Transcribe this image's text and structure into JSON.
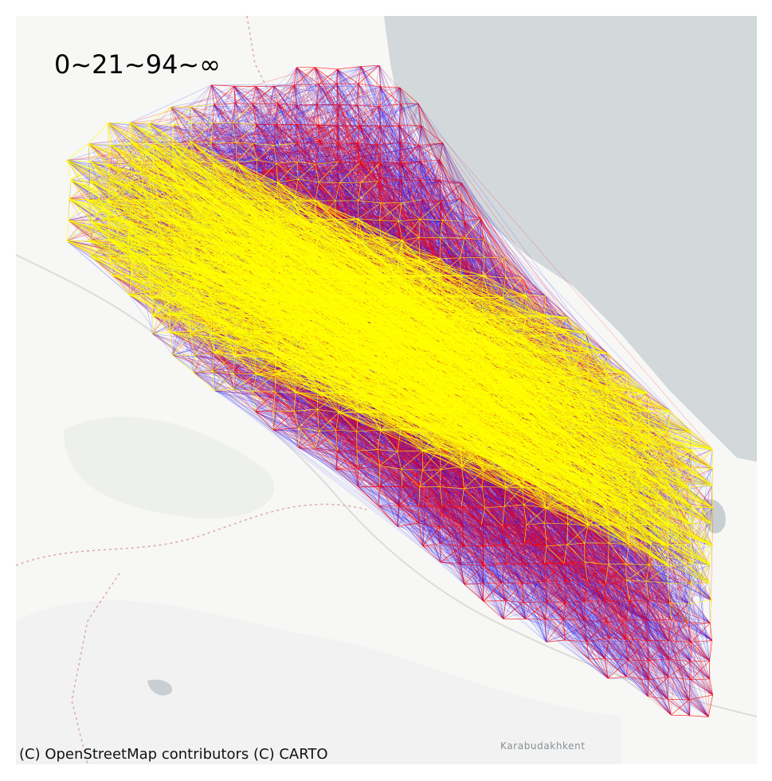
{
  "map": {
    "legend_text": "0~21~94~∞",
    "attribution": "(C) OpenStreetMap contributors (C) CARTO",
    "place_labels": [
      "Karabudakhkent"
    ],
    "colors": {
      "land": "#f7f7f5",
      "sea": "#d3d8db",
      "low_band": "#0000ff",
      "mid_band": "#ff0000",
      "high_band": "#ffff00"
    },
    "icons": [
      "map-basemap",
      "network-graph"
    ]
  }
}
